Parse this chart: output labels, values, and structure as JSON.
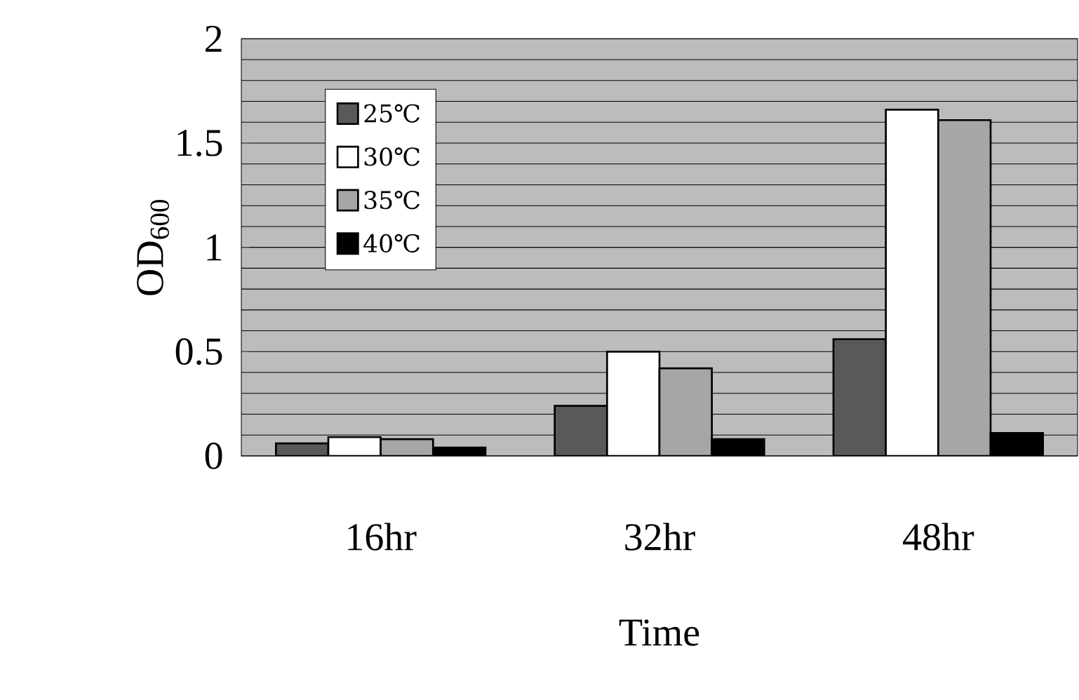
{
  "chart_data": {
    "type": "bar",
    "xlabel": "Time",
    "ylabel": "OD$_{600}$",
    "categories": [
      "16hr",
      "32hr",
      "48hr"
    ],
    "series": [
      {
        "name": "25℃",
        "color": "#595959",
        "values": [
          0.06,
          0.24,
          0.56
        ]
      },
      {
        "name": "30℃",
        "color": "#ffffff",
        "values": [
          0.09,
          0.5,
          1.66
        ]
      },
      {
        "name": "35℃",
        "color": "#a6a6a6",
        "values": [
          0.08,
          0.42,
          1.61
        ]
      },
      {
        "name": "40℃",
        "color": "#000000",
        "values": [
          0.04,
          0.08,
          0.11
        ]
      }
    ],
    "ylim": [
      0,
      2
    ],
    "yticks": [
      0,
      0.5,
      1,
      1.5,
      2
    ],
    "grid": "y",
    "legend": "top left"
  }
}
